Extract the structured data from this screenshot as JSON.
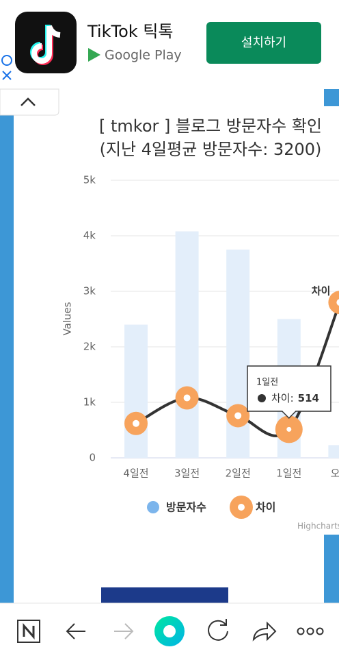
{
  "ad": {
    "app_name": "TikTok 틱톡",
    "store": "Google Play",
    "button": "설치하기"
  },
  "chart_data": {
    "type": "bar-line",
    "title": "[ tmkor ] 블로그 방문자수 확인",
    "subtitle": "(지난 4일평균 방문자수: 3200)",
    "y_label": "Values",
    "categories": [
      "4일전",
      "3일전",
      "2일전",
      "1일전",
      "오늘"
    ],
    "series": [
      {
        "name": "방문자수",
        "type": "bar",
        "color": "#7cb5ec",
        "bar_color": "#e3eefa",
        "values": [
          2400,
          4080,
          3750,
          2500,
          230
        ]
      },
      {
        "name": "차이",
        "type": "line",
        "color": "#f7a35c",
        "line_color": "#333333",
        "values": [
          620,
          1080,
          760,
          514,
          2800
        ]
      }
    ],
    "ylim": [
      0,
      5000
    ],
    "yticks": [
      0,
      {
        "value": 1000,
        "label": "1k"
      },
      {
        "value": 2000,
        "label": "2k"
      },
      {
        "value": 3000,
        "label": "3k"
      },
      {
        "value": 4000,
        "label": "4k"
      },
      {
        "value": 5000,
        "label": "5k"
      }
    ],
    "grid": true,
    "annotation": "차이",
    "tooltip": {
      "label": "차이:"
    },
    "credits": "Highcharts.com"
  }
}
